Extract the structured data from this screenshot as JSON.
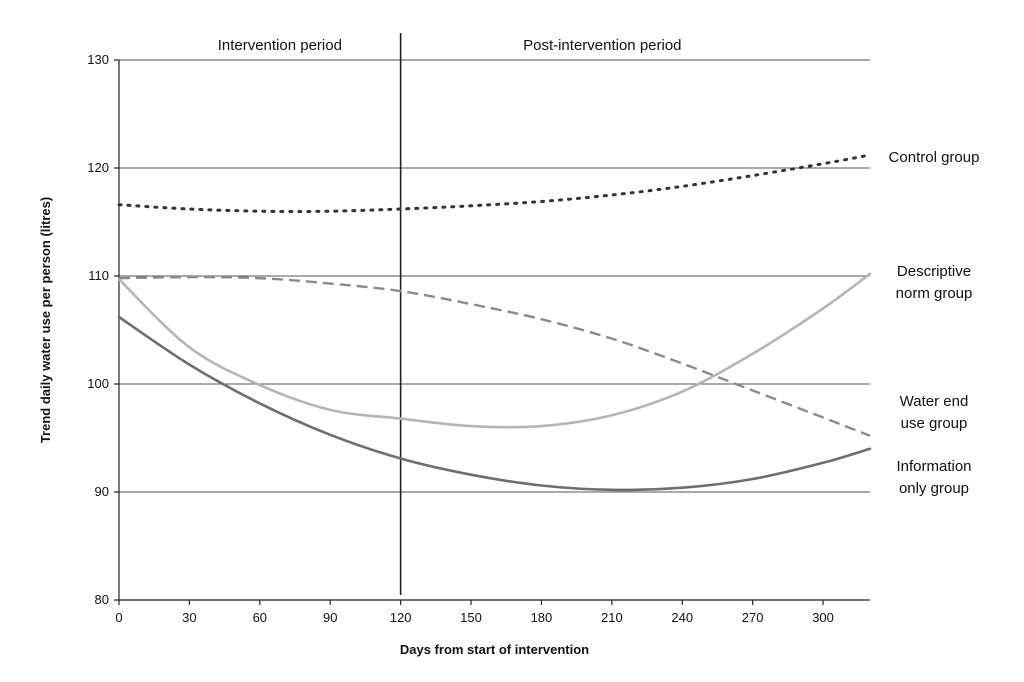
{
  "chart_data": {
    "type": "line",
    "title": "",
    "xlabel": "Days from start of intervention",
    "ylabel": "Trend daily water use per person (litres)",
    "xlim": [
      0,
      320
    ],
    "ylim": [
      80,
      130
    ],
    "x_ticks": [
      0,
      30,
      60,
      90,
      120,
      150,
      180,
      210,
      240,
      270,
      300
    ],
    "y_ticks": [
      80,
      90,
      100,
      110,
      120,
      130
    ],
    "grid": "horizontal",
    "legend": "inline labels at right",
    "period_divider_x": 120,
    "periods": [
      {
        "label": "Intervention period"
      },
      {
        "label": "Post-intervention period"
      }
    ],
    "series": [
      {
        "name": "Control group",
        "label_lines": [
          "Control group"
        ],
        "style": "dotted",
        "color": "#333333",
        "x": [
          0,
          30,
          60,
          90,
          120,
          150,
          180,
          210,
          240,
          270,
          300,
          320
        ],
        "y": [
          116.6,
          116.2,
          116.0,
          116.0,
          116.2,
          116.5,
          116.9,
          117.5,
          118.3,
          119.3,
          120.4,
          121.2
        ]
      },
      {
        "name": "Descriptive norm group",
        "label_lines": [
          "Descriptive",
          "norm group"
        ],
        "style": "solid",
        "color": "#b5b5b5",
        "x": [
          0,
          30,
          60,
          90,
          120,
          150,
          180,
          210,
          240,
          270,
          300,
          320
        ],
        "y": [
          109.7,
          103.4,
          99.9,
          97.6,
          96.8,
          96.1,
          96.1,
          97.1,
          99.3,
          102.8,
          107.0,
          110.2
        ]
      },
      {
        "name": "Water end use group",
        "label_lines": [
          "Water end",
          "use group"
        ],
        "style": "dashed",
        "color": "#8a8a8a",
        "x": [
          0,
          30,
          60,
          90,
          120,
          150,
          180,
          210,
          240,
          270,
          300,
          320
        ],
        "y": [
          109.8,
          109.9,
          109.8,
          109.3,
          108.6,
          107.4,
          106.0,
          104.2,
          101.9,
          99.4,
          96.9,
          95.2
        ]
      },
      {
        "name": "Information only group",
        "label_lines": [
          "Information",
          "only group"
        ],
        "style": "solid",
        "color": "#6e6e6e",
        "x": [
          0,
          30,
          60,
          90,
          120,
          150,
          180,
          210,
          240,
          270,
          300,
          320
        ],
        "y": [
          106.2,
          101.8,
          98.2,
          95.3,
          93.1,
          91.6,
          90.6,
          90.2,
          90.4,
          91.2,
          92.7,
          94.0
        ]
      }
    ]
  }
}
